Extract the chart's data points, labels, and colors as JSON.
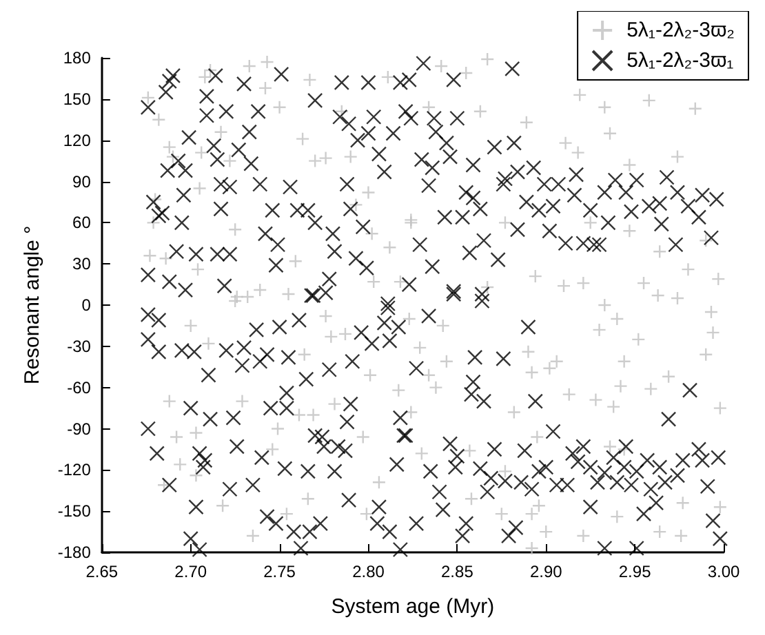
{
  "chart_data": {
    "type": "scatter",
    "xlabel": "System age (Myr)",
    "ylabel": "Resonant angle °",
    "xlim": [
      2.65,
      3.0
    ],
    "ylim": [
      -180,
      180
    ],
    "xticks": [
      {
        "value": 2.65,
        "label": "2.65"
      },
      {
        "value": 2.7,
        "label": "2.70"
      },
      {
        "value": 2.75,
        "label": "2.75"
      },
      {
        "value": 2.8,
        "label": "2.80"
      },
      {
        "value": 2.85,
        "label": "2.85"
      },
      {
        "value": 2.9,
        "label": "2.90"
      },
      {
        "value": 2.95,
        "label": "2.95"
      },
      {
        "value": 3.0,
        "label": "3.00"
      }
    ],
    "yticks": [
      -180,
      -150,
      -120,
      -90,
      -60,
      -30,
      0,
      30,
      60,
      90,
      120,
      150,
      180
    ],
    "grid": false,
    "legend": "top right",
    "series": [
      {
        "name": "5λ₁-2λ₂-3ϖ₂",
        "color": "#c0c0c0",
        "marker": "plus",
        "x": [
          2.676,
          2.682,
          2.688,
          2.69,
          2.68,
          2.679,
          2.677,
          2.686,
          2.704,
          2.708,
          2.711,
          2.706,
          2.705,
          2.717,
          2.722,
          2.725,
          2.726,
          2.732,
          2.739,
          2.733,
          2.742,
          2.743,
          2.75,
          2.755,
          2.759,
          2.767,
          2.763,
          2.77,
          2.776,
          2.785,
          2.79,
          2.793,
          2.8,
          2.802,
          2.803,
          2.812,
          2.811,
          2.818,
          2.824,
          2.841,
          2.855,
          2.867,
          2.834,
          2.863,
          2.889,
          2.911,
          2.918,
          2.933,
          2.936,
          2.947,
          2.958,
          2.984,
          2.974,
          2.919,
          2.824,
          2.877,
          2.925,
          2.947,
          2.964,
          2.98,
          2.997,
          2.894,
          2.91,
          2.921,
          2.963,
          2.955,
          2.867,
          2.99,
          2.7,
          2.688,
          2.692,
          2.703,
          2.685,
          2.694,
          2.703,
          2.71,
          2.718,
          2.729,
          2.735,
          2.749,
          2.746,
          2.761,
          2.769,
          2.764,
          2.754,
          2.766,
          2.779,
          2.787,
          2.781,
          2.797,
          2.801,
          2.799,
          2.806,
          2.817,
          2.824,
          2.776,
          2.725,
          2.823,
          2.842,
          2.829,
          2.844,
          2.834,
          2.838,
          2.89,
          2.892,
          2.906,
          2.902,
          2.913,
          2.928,
          2.938,
          2.942,
          2.944,
          2.959,
          2.969,
          2.93,
          2.94,
          2.952,
          2.933,
          2.974,
          2.993,
          2.994,
          2.99,
          2.998,
          2.882,
          2.895,
          2.83,
          2.857,
          2.877,
          2.875,
          2.858,
          2.896,
          2.892,
          2.9,
          2.921,
          2.94,
          2.964,
          2.976,
          2.977,
          2.998,
          2.892,
          2.944,
          2.936
        ],
        "values": [
          151,
          135,
          115,
          108,
          77,
          60,
          36,
          34,
          26,
          166,
          171,
          111,
          85,
          126,
          105,
          55,
          6,
          6,
          11,
          174,
          158,
          177,
          144,
          8,
          32,
          164,
          121,
          105,
          107,
          141,
          108,
          73,
          82,
          52,
          17,
          42,
          166,
          17,
          60,
          174,
          169,
          179,
          144,
          141,
          133,
          118,
          111,
          144,
          125,
          102,
          149,
          143,
          108,
          153,
          62,
          60,
          60,
          54,
          39,
          26,
          19,
          21,
          14,
          16,
          7,
          16,
          13,
          47,
          -15,
          -70,
          -96,
          -93,
          -131,
          -116,
          -124,
          -28,
          -146,
          -70,
          -168,
          -90,
          -105,
          -80,
          -80,
          -36,
          -152,
          -141,
          -23,
          -21,
          -72,
          -96,
          -51,
          -152,
          -129,
          -62,
          -78,
          -8,
          3,
          -10,
          -15,
          -31,
          -41,
          -51,
          -60,
          -34,
          -49,
          -41,
          -46,
          -65,
          -69,
          -74,
          -59,
          -41,
          -61,
          -52,
          -18,
          -10,
          -25,
          0,
          5,
          -5,
          -20,
          -36,
          -75,
          -78,
          -96,
          -108,
          -106,
          -121,
          -152,
          -141,
          -146,
          -152,
          -165,
          -168,
          -154,
          -165,
          -168,
          -144,
          -147,
          -177,
          -105,
          -103
        ]
      },
      {
        "name": "5λ₁-2λ₂-3ϖ₁",
        "color": "#000000",
        "marker": "cross",
        "x": [
          2.676,
          2.69,
          2.686,
          2.688,
          2.687,
          2.693,
          2.697,
          2.699,
          2.696,
          2.695,
          2.679,
          2.682,
          2.684,
          2.692,
          2.703,
          2.688,
          2.697,
          2.676,
          2.709,
          2.709,
          2.714,
          2.713,
          2.715,
          2.717,
          2.717,
          2.715,
          2.722,
          2.719,
          2.72,
          2.722,
          2.73,
          2.733,
          2.727,
          2.734,
          2.738,
          2.739,
          2.746,
          2.742,
          2.749,
          2.748,
          2.751,
          2.756,
          2.76,
          2.766,
          2.77,
          2.769,
          2.776,
          2.778,
          2.78,
          2.781,
          2.77,
          2.785,
          2.784,
          2.788,
          2.79,
          2.793,
          2.797,
          2.799,
          2.789,
          2.794,
          2.8,
          2.8,
          2.803,
          2.806,
          2.809,
          2.814,
          2.811,
          2.818,
          2.821,
          2.831,
          2.848,
          2.881,
          2.823,
          2.824,
          2.837,
          2.838,
          2.85,
          2.844,
          2.846,
          2.83,
          2.836,
          2.834,
          2.859,
          2.871,
          2.882,
          2.855,
          2.859,
          2.863,
          2.876,
          2.877,
          2.884,
          2.893,
          2.899,
          2.907,
          2.917,
          2.916,
          2.889,
          2.896,
          2.904,
          2.843,
          2.853,
          2.865,
          2.884,
          2.902,
          2.911,
          2.921,
          2.927,
          2.93,
          2.925,
          2.935,
          2.933,
          2.939,
          2.945,
          2.951,
          2.948,
          2.958,
          2.964,
          2.968,
          2.974,
          2.98,
          2.988,
          2.996,
          2.986,
          2.993,
          2.965,
          2.973,
          2.829,
          2.857,
          2.873,
          2.836,
          2.823,
          2.848,
          2.864,
          2.676,
          2.682,
          2.676,
          2.682,
          2.695,
          2.702,
          2.71,
          2.676,
          2.681,
          2.688,
          2.7,
          2.711,
          2.705,
          2.707,
          2.708,
          2.703,
          2.7,
          2.705,
          2.72,
          2.724,
          2.73,
          2.729,
          2.726,
          2.722,
          2.735,
          2.737,
          2.739,
          2.743,
          2.74,
          2.745,
          2.75,
          2.754,
          2.754,
          2.755,
          2.761,
          2.753,
          2.743,
          2.748,
          2.758,
          2.762,
          2.766,
          2.765,
          2.768,
          2.77,
          2.774,
          2.775,
          2.783,
          2.787,
          2.781,
          2.773,
          2.767,
          2.778,
          2.788,
          2.79,
          2.791,
          2.789,
          2.796,
          2.802,
          2.811,
          2.809,
          2.817,
          2.812,
          2.816,
          2.818,
          2.821,
          2.806,
          2.805,
          2.812,
          2.818,
          2.834,
          2.848,
          2.864,
          2.89,
          2.827,
          2.86,
          2.876,
          2.859,
          2.858,
          2.865,
          2.894,
          2.82,
          2.904,
          2.846,
          2.85,
          2.849,
          2.835,
          2.863,
          2.871,
          2.869,
          2.877,
          2.867,
          2.84,
          2.842,
          2.827,
          2.855,
          2.853,
          2.883,
          2.879,
          2.888,
          2.886,
          2.892,
          2.896,
          2.9,
          2.906,
          2.912,
          2.915,
          2.921,
          2.918,
          2.925,
          2.929,
          2.925,
          2.933,
          2.938,
          2.94,
          2.945,
          2.944,
          2.948,
          2.951,
          2.957,
          2.955,
          2.959,
          2.962,
          2.964,
          2.967,
          2.969,
          2.974,
          2.977,
          2.981,
          2.986,
          2.988,
          2.991,
          2.997,
          2.994,
          2.998,
          2.933,
          2.951
        ],
        "values": [
          144,
          167,
          155,
          163,
          98,
          105,
          98,
          122,
          80,
          60,
          75,
          65,
          67,
          39,
          37,
          17,
          11,
          22,
          138,
          152,
          167,
          116,
          106,
          88,
          70,
          37,
          37,
          14,
          141,
          86,
          161,
          126,
          113,
          103,
          141,
          88,
          69,
          52,
          44,
          29,
          168,
          86,
          69,
          69,
          60,
          7,
          9,
          19,
          52,
          39,
          149,
          162,
          137,
          88,
          70,
          34,
          57,
          27,
          132,
          120,
          125,
          162,
          137,
          110,
          97,
          125,
          1,
          162,
          141,
          176,
          164,
          172,
          164,
          136,
          136,
          126,
          136,
          118,
          108,
          106,
          100,
          87,
          102,
          115,
          118,
          82,
          78,
          70,
          88,
          92,
          97,
          100,
          88,
          88,
          95,
          80,
          75,
          69,
          72,
          64,
          64,
          47,
          55,
          54,
          45,
          45,
          44,
          44,
          69,
          60,
          82,
          91,
          82,
          91,
          68,
          72,
          74,
          93,
          82,
          72,
          80,
          77,
          64,
          49,
          59,
          44,
          44,
          38,
          33,
          28,
          15,
          10,
          8,
          -7,
          -11,
          -25,
          -34,
          -33,
          -34,
          -51,
          -90,
          -108,
          -131,
          -75,
          -83,
          -108,
          -118,
          -113,
          -147,
          -170,
          -178,
          -33,
          -82,
          -31,
          -44,
          -103,
          -134,
          -131,
          -18,
          -41,
          -36,
          -111,
          -75,
          -16,
          -75,
          -64,
          -38,
          -11,
          -119,
          -154,
          -159,
          -165,
          -177,
          -121,
          -54,
          7,
          -95,
          -96,
          -103,
          -103,
          -106,
          -121,
          -159,
          -165,
          -47,
          -85,
          -72,
          -41,
          -142,
          -20,
          -28,
          -2,
          -13,
          -16,
          -26,
          -116,
          -82,
          -95,
          -147,
          -159,
          -165,
          -178,
          -8,
          8,
          3,
          -16,
          -46,
          -38,
          -39,
          -56,
          -65,
          -70,
          -70,
          -95,
          -92,
          -101,
          -110,
          -118,
          -121,
          -119,
          -105,
          -126,
          -128,
          -136,
          -136,
          -149,
          -159,
          -159,
          -168,
          -162,
          -168,
          -106,
          -129,
          -134,
          -121,
          -118,
          -131,
          -131,
          -108,
          -103,
          -114,
          -118,
          -129,
          -147,
          -122,
          -111,
          -129,
          -103,
          -118,
          -131,
          -121,
          -113,
          -152,
          -134,
          -144,
          -118,
          -129,
          -83,
          -124,
          -113,
          -62,
          -105,
          -113,
          -132,
          -111,
          -157,
          -170,
          -177,
          -177
        ]
      }
    ]
  }
}
